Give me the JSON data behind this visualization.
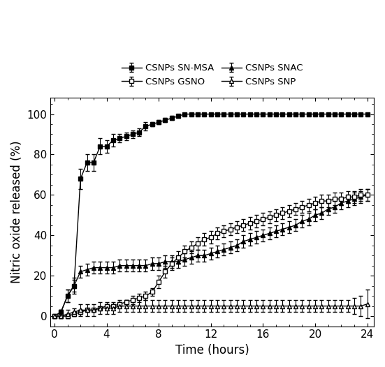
{
  "title": "",
  "xlabel": "Time (hours)",
  "ylabel": "Nitric oxide released (%)",
  "xlim": [
    -0.3,
    24.5
  ],
  "ylim": [
    -5,
    108
  ],
  "yticks": [
    0,
    20,
    40,
    60,
    80,
    100
  ],
  "xticks": [
    0,
    4,
    8,
    12,
    16,
    20,
    24
  ],
  "series": [
    {
      "label": "CSNPs SN-MSA",
      "marker": "s",
      "filled": true,
      "color": "#000000",
      "x": [
        0,
        0.5,
        1,
        1.5,
        2,
        2.5,
        3,
        3.5,
        4,
        4.5,
        5,
        5.5,
        6,
        6.5,
        7,
        7.5,
        8,
        8.5,
        9,
        9.5,
        10,
        10.5,
        11,
        11.5,
        12,
        12.5,
        13,
        13.5,
        14,
        14.5,
        15,
        15.5,
        16,
        16.5,
        17,
        17.5,
        18,
        18.5,
        19,
        19.5,
        20,
        20.5,
        21,
        21.5,
        22,
        22.5,
        23,
        23.5,
        24
      ],
      "y": [
        0,
        2,
        10,
        15,
        68,
        76,
        76,
        84,
        84,
        87,
        88,
        89,
        90,
        91,
        94,
        95,
        96,
        97,
        98,
        99,
        100,
        100,
        100,
        100,
        100,
        100,
        100,
        100,
        100,
        100,
        100,
        100,
        100,
        100,
        100,
        100,
        100,
        100,
        100,
        100,
        100,
        100,
        100,
        100,
        100,
        100,
        100,
        100,
        100
      ],
      "yerr": [
        0,
        1,
        3,
        4,
        5,
        4,
        4,
        4,
        3,
        3,
        2,
        2,
        2,
        2,
        2,
        1,
        1,
        1,
        1,
        1,
        0.5,
        0.5,
        0.5,
        0.5,
        0.5,
        0.5,
        0.5,
        0.5,
        0.5,
        0.5,
        0.5,
        0.5,
        0.5,
        0.5,
        0.5,
        0.5,
        0.5,
        0.5,
        0.5,
        0.5,
        0.5,
        0.5,
        0.5,
        0.5,
        0.5,
        0.5,
        0.5,
        0.5,
        0.5
      ]
    },
    {
      "label": "CSNPs SNAC",
      "marker": "^",
      "filled": true,
      "color": "#000000",
      "x": [
        0,
        0.5,
        1,
        1.5,
        2,
        2.5,
        3,
        3.5,
        4,
        4.5,
        5,
        5.5,
        6,
        6.5,
        7,
        7.5,
        8,
        8.5,
        9,
        9.5,
        10,
        10.5,
        11,
        11.5,
        12,
        12.5,
        13,
        13.5,
        14,
        14.5,
        15,
        15.5,
        16,
        16.5,
        17,
        17.5,
        18,
        18.5,
        19,
        19.5,
        20,
        20.5,
        21,
        21.5,
        22,
        22.5,
        23,
        23.5,
        24
      ],
      "y": [
        0,
        2,
        10,
        15,
        22,
        23,
        24,
        24,
        24,
        24,
        25,
        25,
        25,
        25,
        25,
        26,
        26,
        27,
        27,
        27,
        28,
        29,
        30,
        30,
        31,
        32,
        33,
        34,
        35,
        37,
        38,
        39,
        40,
        41,
        42,
        43,
        44,
        45,
        47,
        48,
        50,
        51,
        53,
        54,
        56,
        57,
        58,
        59,
        60
      ],
      "yerr": [
        0,
        1,
        3,
        3,
        3,
        3,
        3,
        3,
        3,
        3,
        3,
        3,
        3,
        3,
        3,
        3,
        3,
        3,
        3,
        3,
        3,
        3,
        3,
        3,
        3,
        3,
        3,
        3,
        3,
        3,
        3,
        3,
        3,
        3,
        3,
        3,
        3,
        3,
        3,
        3,
        3,
        3,
        3,
        3,
        3,
        3,
        3,
        3,
        3
      ]
    },
    {
      "label": "CSNPs GSNO",
      "marker": "s",
      "filled": false,
      "color": "#000000",
      "x": [
        0,
        0.5,
        1,
        1.5,
        2,
        2.5,
        3,
        3.5,
        4,
        4.5,
        5,
        5.5,
        6,
        6.5,
        7,
        7.5,
        8,
        8.5,
        9,
        9.5,
        10,
        10.5,
        11,
        11.5,
        12,
        12.5,
        13,
        13.5,
        14,
        14.5,
        15,
        15.5,
        16,
        16.5,
        17,
        17.5,
        18,
        18.5,
        19,
        19.5,
        20,
        20.5,
        21,
        21.5,
        22,
        22.5,
        23,
        23.5,
        24
      ],
      "y": [
        0,
        0,
        0,
        1,
        2,
        3,
        3,
        4,
        5,
        5,
        6,
        7,
        8,
        9,
        10,
        12,
        17,
        22,
        26,
        29,
        32,
        34,
        36,
        38,
        39,
        41,
        42,
        43,
        44,
        45,
        46,
        47,
        48,
        49,
        50,
        51,
        52,
        53,
        54,
        55,
        56,
        57,
        57,
        58,
        58,
        59,
        59,
        60,
        60
      ],
      "yerr": [
        0,
        1,
        1,
        1,
        1,
        1,
        1,
        1,
        1,
        1,
        1,
        1,
        2,
        2,
        2,
        2,
        3,
        3,
        3,
        3,
        3,
        3,
        3,
        3,
        3,
        3,
        3,
        3,
        3,
        3,
        3,
        3,
        3,
        3,
        3,
        3,
        3,
        3,
        3,
        3,
        3,
        3,
        3,
        3,
        3,
        3,
        3,
        3,
        3
      ]
    },
    {
      "label": "CSNPs SNP",
      "marker": "^",
      "filled": false,
      "color": "#000000",
      "x": [
        0,
        0.5,
        1,
        1.5,
        2,
        2.5,
        3,
        3.5,
        4,
        4.5,
        5,
        5.5,
        6,
        6.5,
        7,
        7.5,
        8,
        8.5,
        9,
        9.5,
        10,
        10.5,
        11,
        11.5,
        12,
        12.5,
        13,
        13.5,
        14,
        14.5,
        15,
        15.5,
        16,
        16.5,
        17,
        17.5,
        18,
        18.5,
        19,
        19.5,
        20,
        20.5,
        21,
        21.5,
        22,
        22.5,
        23,
        23.5,
        24
      ],
      "y": [
        0,
        0,
        1,
        2,
        3,
        3,
        3,
        4,
        4,
        4,
        5,
        5,
        5,
        5,
        5,
        5,
        5,
        5,
        5,
        5,
        5,
        5,
        5,
        5,
        5,
        5,
        5,
        5,
        5,
        5,
        5,
        5,
        5,
        5,
        5,
        5,
        5,
        5,
        5,
        5,
        5,
        5,
        5,
        5,
        5,
        5,
        5,
        5,
        6
      ],
      "yerr": [
        0,
        1,
        2,
        2,
        3,
        3,
        3,
        3,
        3,
        3,
        3,
        3,
        3,
        3,
        3,
        3,
        3,
        3,
        3,
        3,
        3,
        3,
        3,
        3,
        3,
        3,
        3,
        3,
        3,
        3,
        3,
        3,
        3,
        3,
        3,
        3,
        3,
        3,
        3,
        3,
        3,
        3,
        3,
        3,
        3,
        3,
        4,
        5,
        7
      ]
    }
  ],
  "legend_order": [
    0,
    2,
    1,
    3
  ],
  "legend_ncol": 2,
  "figsize": [
    5.51,
    5.26
  ],
  "dpi": 100
}
